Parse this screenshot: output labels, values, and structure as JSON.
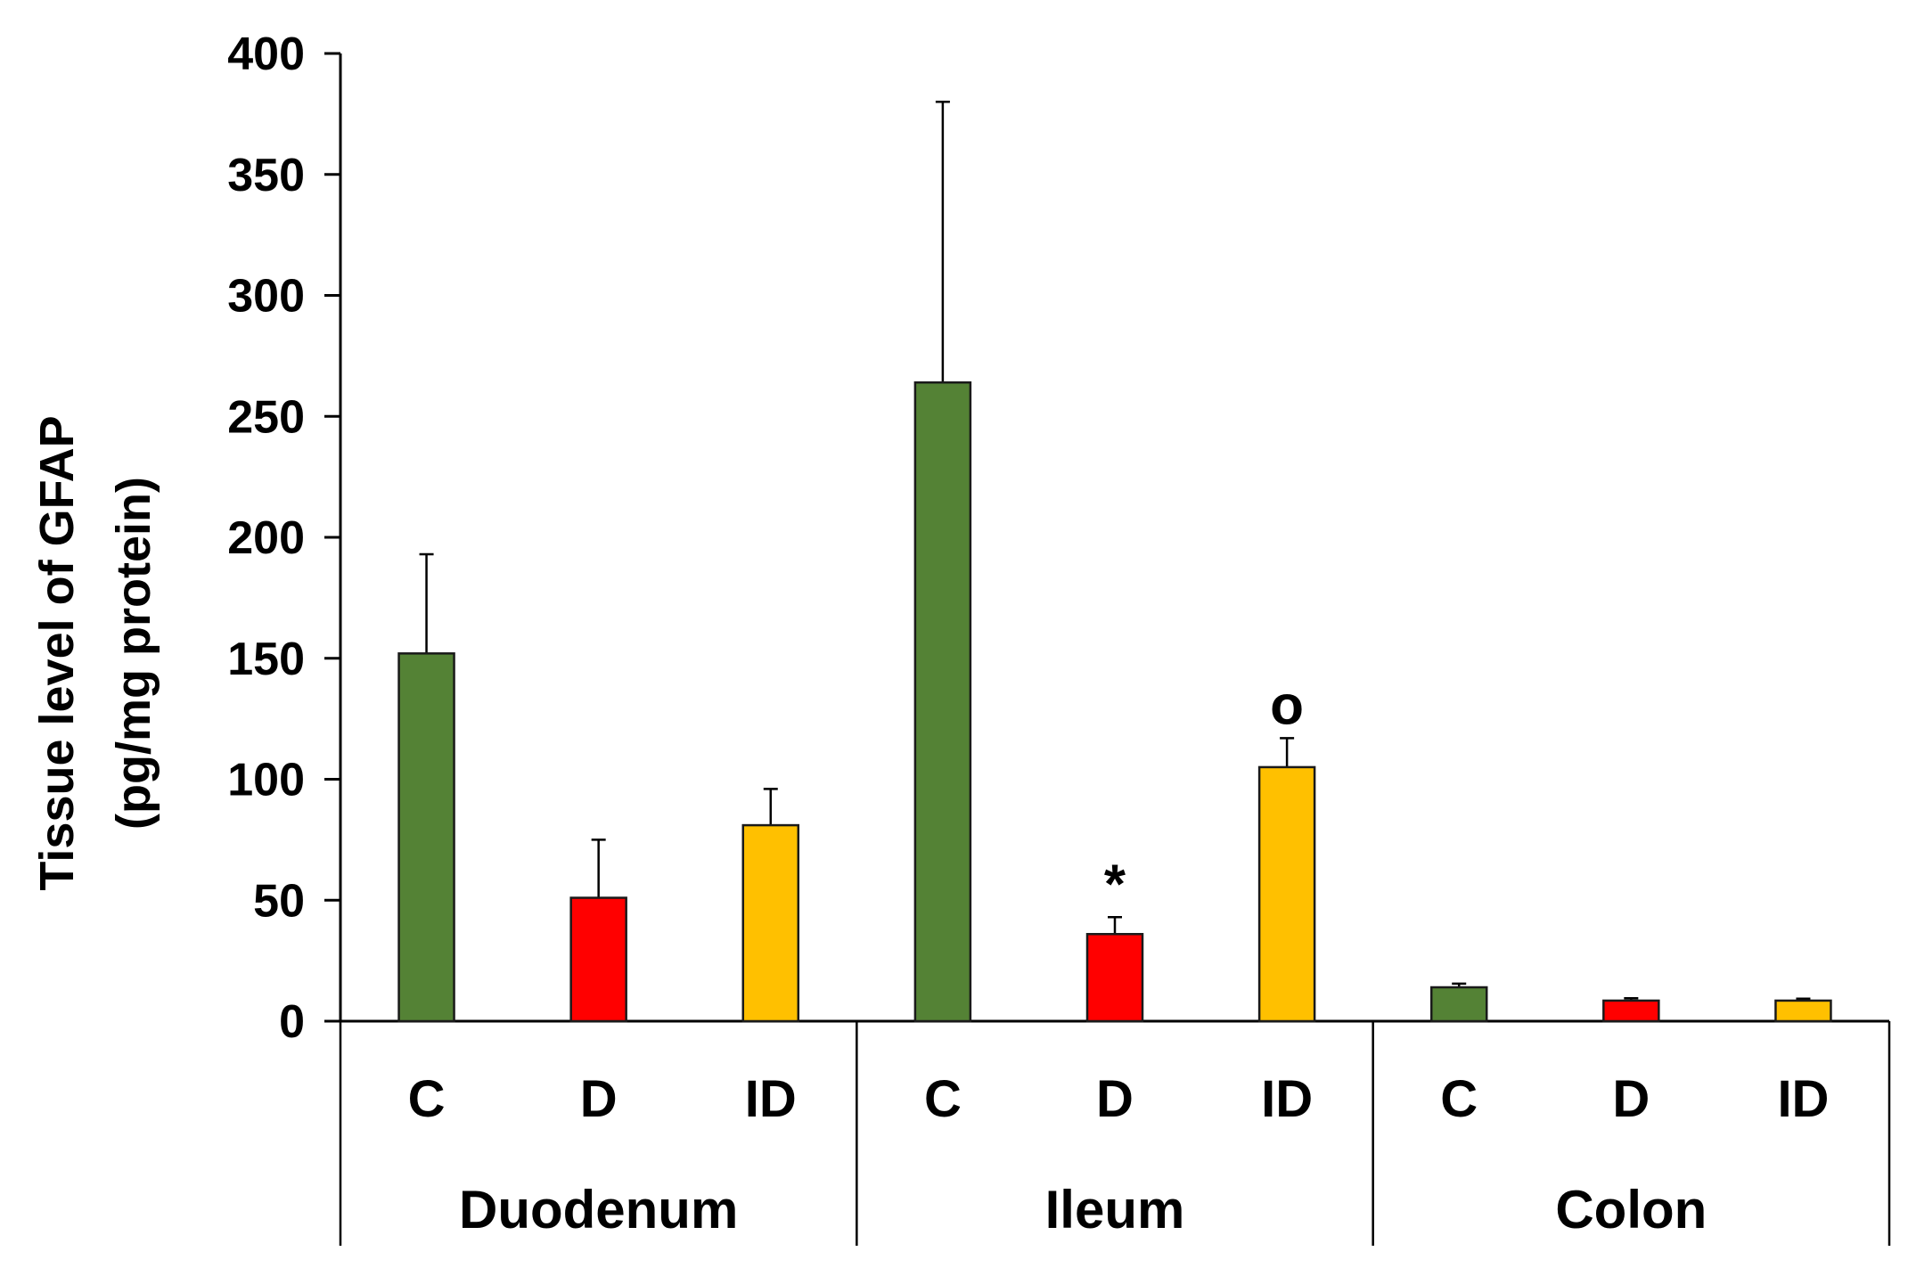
{
  "chart_data": {
    "type": "bar",
    "ylabel_lines": [
      "Tissue level of GFAP",
      "(pg/mg protein)"
    ],
    "ylim": [
      0,
      400
    ],
    "yticks": [
      0,
      50,
      100,
      150,
      200,
      250,
      300,
      350,
      400
    ],
    "grid": false,
    "groups": [
      {
        "name": "Duodenum",
        "bars": [
          {
            "label": "C",
            "value": 152,
            "error": 41,
            "color": "#548235",
            "annotation": ""
          },
          {
            "label": "D",
            "value": 51,
            "error": 24,
            "color": "#ff0000",
            "annotation": ""
          },
          {
            "label": "ID",
            "value": 81,
            "error": 15,
            "color": "#ffc000",
            "annotation": ""
          }
        ]
      },
      {
        "name": "Ileum",
        "bars": [
          {
            "label": "C",
            "value": 264,
            "error": 116,
            "color": "#548235",
            "annotation": ""
          },
          {
            "label": "D",
            "value": 36,
            "error": 7,
            "color": "#ff0000",
            "annotation": "*"
          },
          {
            "label": "ID",
            "value": 105,
            "error": 12,
            "color": "#ffc000",
            "annotation": "o"
          }
        ]
      },
      {
        "name": "Colon",
        "bars": [
          {
            "label": "C",
            "value": 14,
            "error": 1.5,
            "color": "#548235",
            "annotation": ""
          },
          {
            "label": "D",
            "value": 8.5,
            "error": 1,
            "color": "#ff0000",
            "annotation": ""
          },
          {
            "label": "ID",
            "value": 8.5,
            "error": 0.8,
            "color": "#ffc000",
            "annotation": ""
          }
        ]
      }
    ]
  }
}
